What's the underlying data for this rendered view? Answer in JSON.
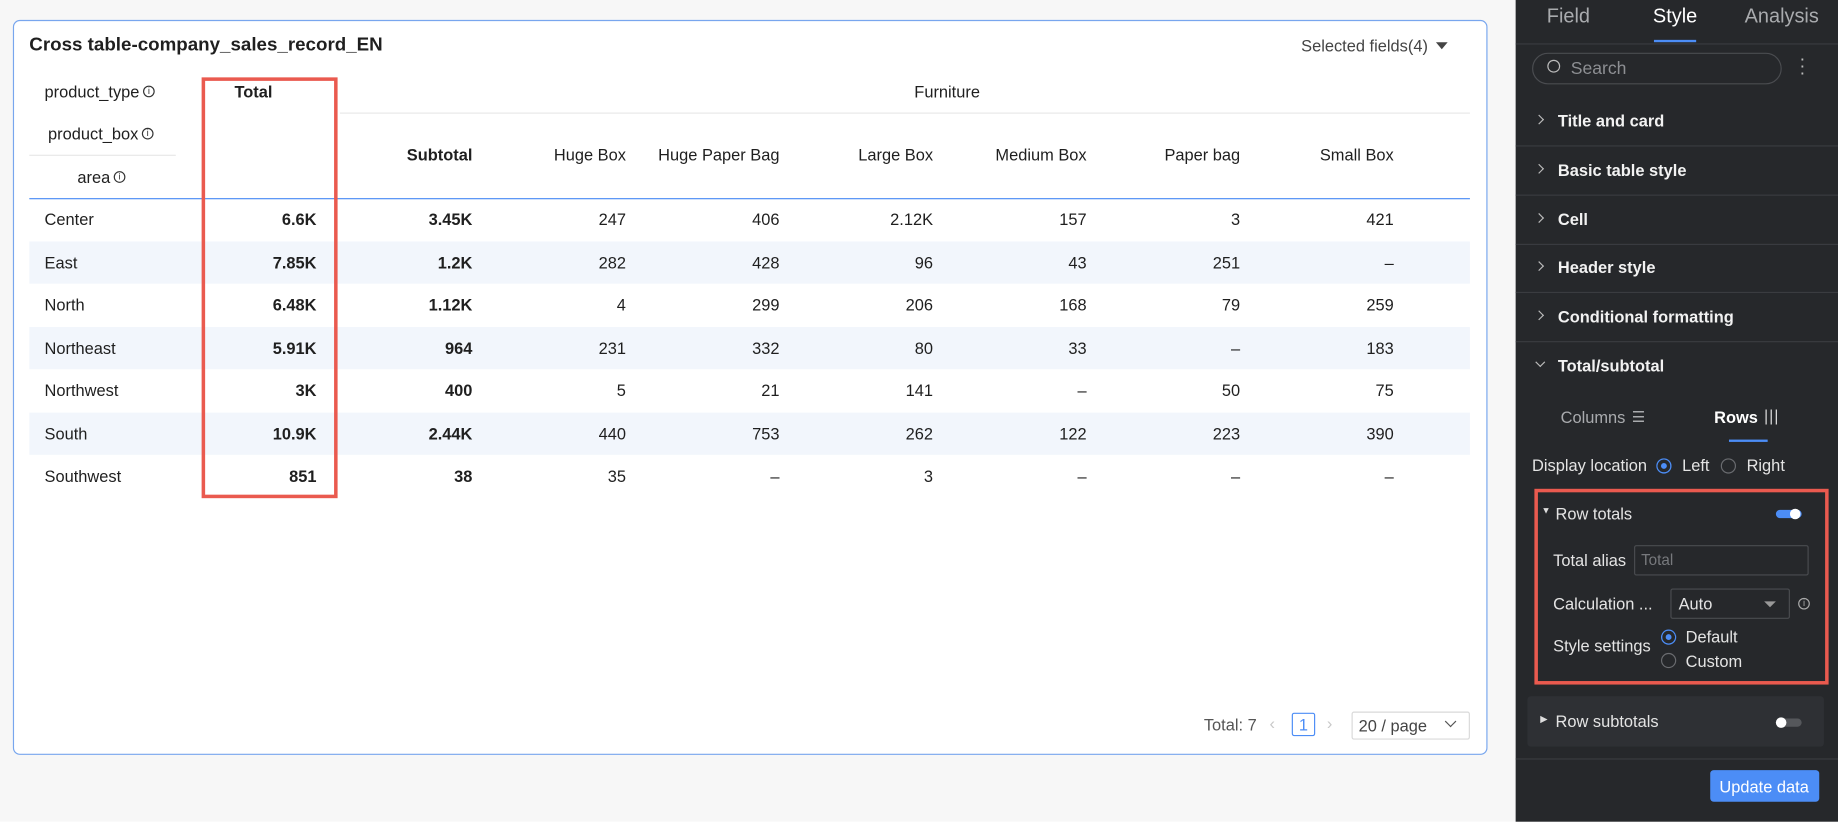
{
  "card": {
    "title": "Cross table-company_sales_record_EN",
    "selected_fields": "Selected fields(4)"
  },
  "table": {
    "corner": [
      "product_type",
      "product_box",
      "area"
    ],
    "total_header": "Total",
    "group_header": "Furniture",
    "sub_headers": [
      "Subtotal",
      "Huge Box",
      "Huge Paper Bag",
      "Large Box",
      "Medium Box",
      "Paper bag",
      "Small Box"
    ],
    "rows": [
      [
        "Center",
        "6.6K",
        "3.45K",
        "247",
        "406",
        "2.12K",
        "157",
        "3",
        "421"
      ],
      [
        "East",
        "7.85K",
        "1.2K",
        "282",
        "428",
        "96",
        "43",
        "251",
        "–"
      ],
      [
        "North",
        "6.48K",
        "1.12K",
        "4",
        "299",
        "206",
        "168",
        "79",
        "259"
      ],
      [
        "Northeast",
        "5.91K",
        "964",
        "231",
        "332",
        "80",
        "33",
        "–",
        "183"
      ],
      [
        "Northwest",
        "3K",
        "400",
        "5",
        "21",
        "141",
        "–",
        "50",
        "75"
      ],
      [
        "South",
        "10.9K",
        "2.44K",
        "440",
        "753",
        "262",
        "122",
        "223",
        "390"
      ],
      [
        "Southwest",
        "851",
        "38",
        "35",
        "–",
        "3",
        "–",
        "–",
        "–"
      ]
    ]
  },
  "pagination": {
    "total": "Total: 7",
    "page": "1",
    "page_size": "20 / page"
  },
  "panel": {
    "tabs": [
      "Field",
      "Style",
      "Analysis"
    ],
    "search_placeholder": "Search",
    "sections": [
      "Title and card",
      "Basic table style",
      "Cell",
      "Header style",
      "Conditional formatting",
      "Total/subtotal"
    ],
    "subtabs": [
      "Columns",
      "Rows"
    ],
    "display_location": {
      "label": "Display location",
      "options": [
        "Left",
        "Right"
      ]
    },
    "row_totals": {
      "title": "Row totals",
      "alias_label": "Total alias",
      "alias_placeholder": "Total",
      "calc_label": "Calculation ...",
      "calc_value": "Auto",
      "style_label": "Style settings",
      "style_options": [
        "Default",
        "Custom"
      ]
    },
    "row_subtotals": "Row subtotals",
    "update_button": "Update data"
  }
}
